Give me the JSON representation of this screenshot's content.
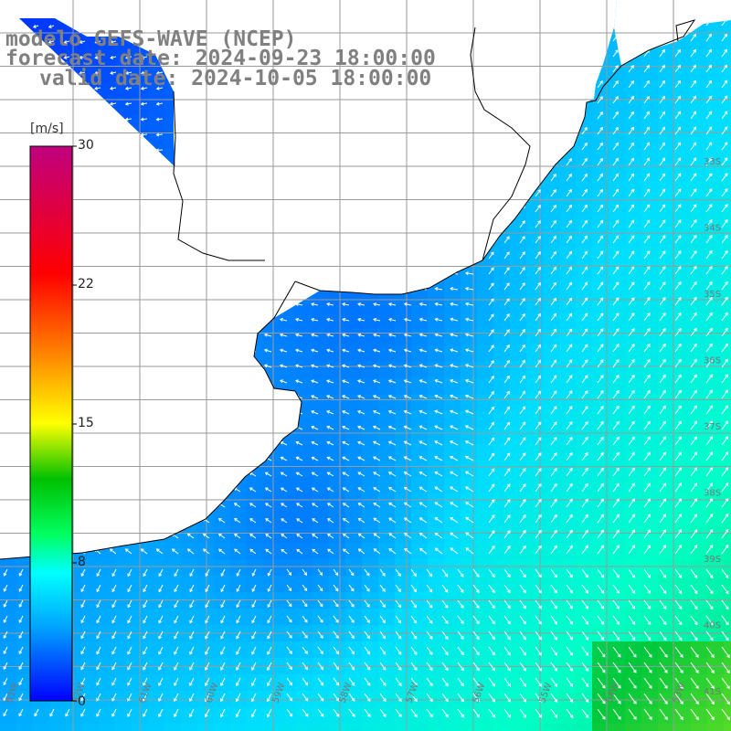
{
  "title": {
    "line1": "modelo GEFS-WAVE (NCEP)",
    "line2": "forecast date: 2024-09-23 18:00:00",
    "line3": "valid date: 2024-10-05 18:00:00"
  },
  "colorbar": {
    "units": "[m/s]",
    "ticks": [
      "30",
      "22",
      "15",
      "8",
      "0"
    ],
    "range": [
      0,
      30
    ],
    "colors": [
      "#0000ff",
      "#00a0ff",
      "#00ffff",
      "#00ff60",
      "#00c000",
      "#ffff00",
      "#ff8000",
      "#ff0000",
      "#c0007f"
    ]
  },
  "map": {
    "lat_labels": [
      "33S",
      "34S",
      "35S",
      "36S",
      "37S",
      "38S",
      "39S",
      "40S",
      "41S"
    ],
    "lon_labels": [
      "63W",
      "62W",
      "61W",
      "60W",
      "59W",
      "58W",
      "57W",
      "56W",
      "55W",
      "54W",
      "53W"
    ],
    "land_color": "#ffffff",
    "grid_color": "#9a9a9a",
    "coast_color": "#000000"
  }
}
